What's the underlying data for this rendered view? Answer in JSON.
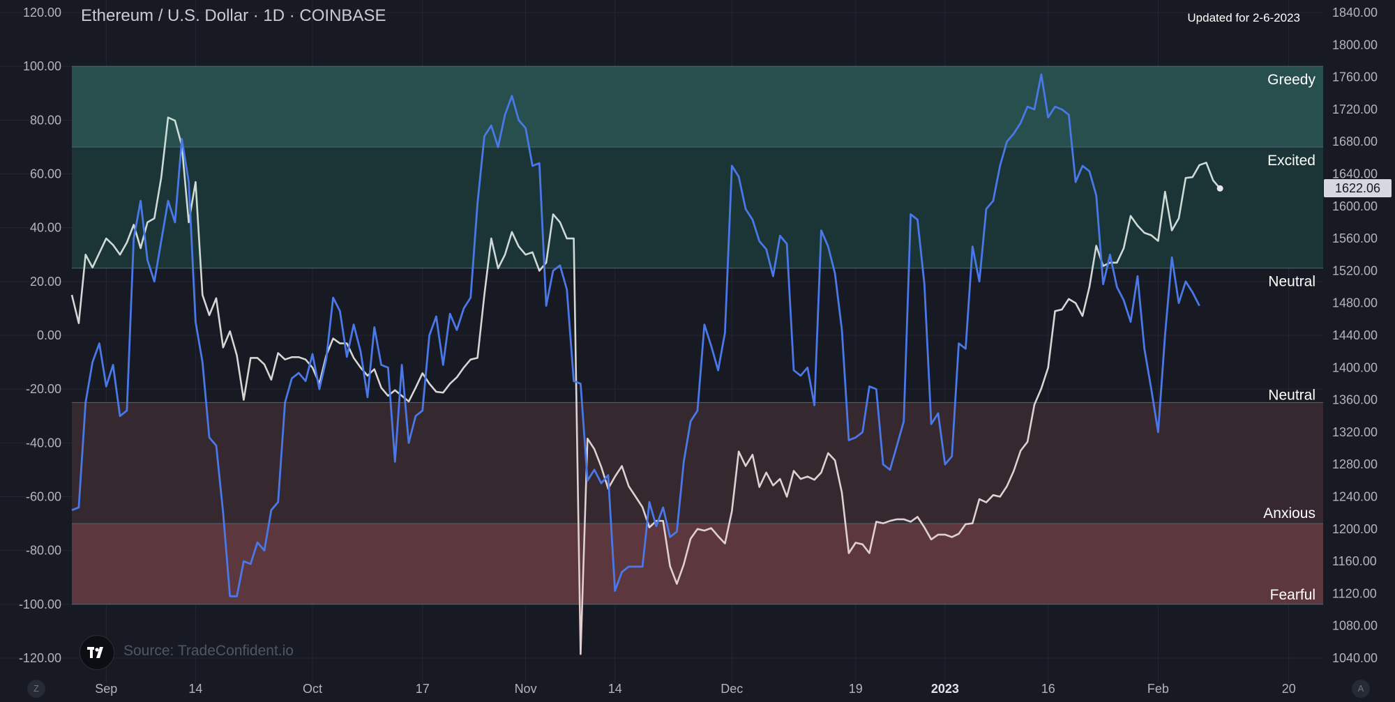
{
  "header": {
    "title": "Ethereum / U.S. Dollar · 1D · COINBASE",
    "updated": "Updated for 2-6-2023",
    "price_label": "1622.06"
  },
  "footer": {
    "source": "Source: TradeConfident.io",
    "left_button": "Z",
    "right_button": "A"
  },
  "colors": {
    "background": "#171a22",
    "grid": "#232733",
    "band_greedy": "#274f4e",
    "band_excited": "#1b3536",
    "band_anxious": "#35282e",
    "band_fearful": "#5c383e",
    "sentiment_line": "#4a78e8",
    "price_line_top": "#c9ddd8",
    "price_line_bottom": "#e6cdcf",
    "axis_text": "#b2b5be"
  },
  "chart_data": {
    "type": "line",
    "title": "Ethereum / U.S. Dollar · 1D · COINBASE",
    "x_axis_ticks": [
      {
        "label": "Sep",
        "date": "2022-09-01",
        "bold": false
      },
      {
        "label": "14",
        "date": "2022-09-14",
        "bold": false
      },
      {
        "label": "Oct",
        "date": "2022-10-01",
        "bold": false
      },
      {
        "label": "17",
        "date": "2022-10-17",
        "bold": false
      },
      {
        "label": "Nov",
        "date": "2022-11-01",
        "bold": false
      },
      {
        "label": "14",
        "date": "2022-11-14",
        "bold": false
      },
      {
        "label": "Dec",
        "date": "2022-12-01",
        "bold": false
      },
      {
        "label": "19",
        "date": "2022-12-19",
        "bold": false
      },
      {
        "label": "2023",
        "date": "2023-01-01",
        "bold": true
      },
      {
        "label": "16",
        "date": "2023-01-16",
        "bold": false
      },
      {
        "label": "Feb",
        "date": "2023-02-01",
        "bold": false
      },
      {
        "label": "20",
        "date": "2023-02-20",
        "bold": false
      }
    ],
    "x_range": [
      "2022-08-27",
      "2023-02-25"
    ],
    "left_axis": {
      "range": [
        -120,
        120
      ],
      "ticks": [
        "120.00",
        "100.00",
        "80.00",
        "60.00",
        "40.00",
        "20.00",
        "0.00",
        "-20.00",
        "-40.00",
        "-60.00",
        "-80.00",
        "-100.00",
        "-120.00"
      ]
    },
    "right_axis": {
      "range": [
        1040,
        1840
      ],
      "ticks": [
        "1840.00",
        "1800.00",
        "1760.00",
        "1720.00",
        "1680.00",
        "1640.00",
        "1600.00",
        "1560.00",
        "1520.00",
        "1480.00",
        "1440.00",
        "1400.00",
        "1360.00",
        "1320.00",
        "1280.00",
        "1240.00",
        "1200.00",
        "1160.00",
        "1120.00",
        "1080.00",
        "1040.00"
      ]
    },
    "bands": [
      {
        "label": "Greedy",
        "from": 70,
        "to": 100
      },
      {
        "label": "Excited",
        "from": 25,
        "to": 70
      },
      {
        "label": "Neutral",
        "from": 0,
        "to": 25
      },
      {
        "label": "Neutral",
        "from": -25,
        "to": 0
      },
      {
        "label": "Anxious",
        "from": -70,
        "to": -25
      },
      {
        "label": "Fearful",
        "from": -100,
        "to": -70
      }
    ],
    "series": [
      {
        "axis": "left",
        "start": "2022-08-27",
        "values": [
          -65,
          -64,
          -25,
          -10,
          -3,
          -19,
          -11,
          -30,
          -28,
          36,
          50,
          28,
          20,
          35,
          50,
          42,
          73,
          57,
          5,
          -10,
          -38,
          -41,
          -66,
          -97,
          -97,
          -84,
          -85,
          -77,
          -80,
          -65,
          -62,
          -25,
          -16,
          -14,
          -17,
          -7,
          -20,
          -9,
          14,
          9,
          -8,
          4,
          -6,
          -23,
          3,
          -11,
          -12,
          -47,
          -11,
          -40,
          -30,
          -28,
          0,
          7,
          -11,
          8,
          2,
          10,
          14,
          49,
          74,
          78,
          70,
          82,
          89,
          80,
          77,
          63,
          64,
          11,
          24,
          26,
          17,
          -17,
          -18,
          -54,
          -50,
          -55,
          -52,
          -95,
          -88,
          -86,
          -86,
          -86,
          -62,
          -71,
          -64,
          -75,
          -73,
          -47,
          -32,
          -28,
          4,
          -4,
          -13,
          1,
          63,
          59,
          47,
          43,
          35,
          32,
          22,
          37,
          34,
          -13,
          -15,
          -12,
          -26,
          39,
          33,
          23,
          2,
          -39,
          -38,
          -36,
          -19,
          -20,
          -48,
          -50,
          -41,
          -32,
          45,
          43,
          19,
          -33,
          -29,
          -48,
          -45,
          -3,
          -5,
          33,
          20,
          47,
          50,
          63,
          72,
          75,
          79,
          85,
          84,
          97,
          81,
          85,
          84,
          82,
          57,
          63,
          61,
          52,
          19,
          30,
          18,
          13,
          5,
          22,
          -5,
          -20,
          -36,
          0,
          29,
          12,
          20,
          16,
          11
        ]
      },
      {
        "axis": "right",
        "start": "2022-08-27",
        "values": [
          1490,
          1455,
          1540,
          1524,
          1542,
          1560,
          1552,
          1540,
          1555,
          1577,
          1548,
          1580,
          1585,
          1635,
          1710,
          1706,
          1675,
          1580,
          1630,
          1490,
          1465,
          1486,
          1425,
          1445,
          1415,
          1360,
          1412,
          1412,
          1404,
          1385,
          1418,
          1410,
          1413,
          1413,
          1410,
          1400,
          1380,
          1415,
          1436,
          1430,
          1430,
          1412,
          1400,
          1390,
          1398,
          1375,
          1365,
          1372,
          1365,
          1358,
          1375,
          1393,
          1380,
          1370,
          1369,
          1380,
          1388,
          1400,
          1410,
          1412,
          1490,
          1560,
          1523,
          1540,
          1568,
          1550,
          1540,
          1543,
          1520,
          1530,
          1590,
          1580,
          1560,
          1560,
          1045,
          1312,
          1299,
          1277,
          1250,
          1265,
          1278,
          1253,
          1240,
          1227,
          1202,
          1210,
          1210,
          1154,
          1132,
          1156,
          1188,
          1200,
          1198,
          1201,
          1191,
          1182,
          1222,
          1296,
          1278,
          1292,
          1252,
          1270,
          1254,
          1262,
          1240,
          1272,
          1262,
          1265,
          1261,
          1270,
          1294,
          1285,
          1245,
          1170,
          1183,
          1181,
          1170,
          1209,
          1207,
          1210,
          1212,
          1212,
          1209,
          1215,
          1202,
          1187,
          1193,
          1193,
          1190,
          1194,
          1206,
          1207,
          1237,
          1233,
          1242,
          1240,
          1253,
          1272,
          1297,
          1308,
          1354,
          1374,
          1400,
          1470,
          1472,
          1485,
          1480,
          1464,
          1500,
          1551,
          1526,
          1530,
          1530,
          1548,
          1588,
          1576,
          1567,
          1564,
          1557,
          1618,
          1570,
          1585,
          1635,
          1636,
          1651,
          1654,
          1632,
          1622.06
        ]
      }
    ],
    "last_price": 1622.06,
    "grid": true
  }
}
